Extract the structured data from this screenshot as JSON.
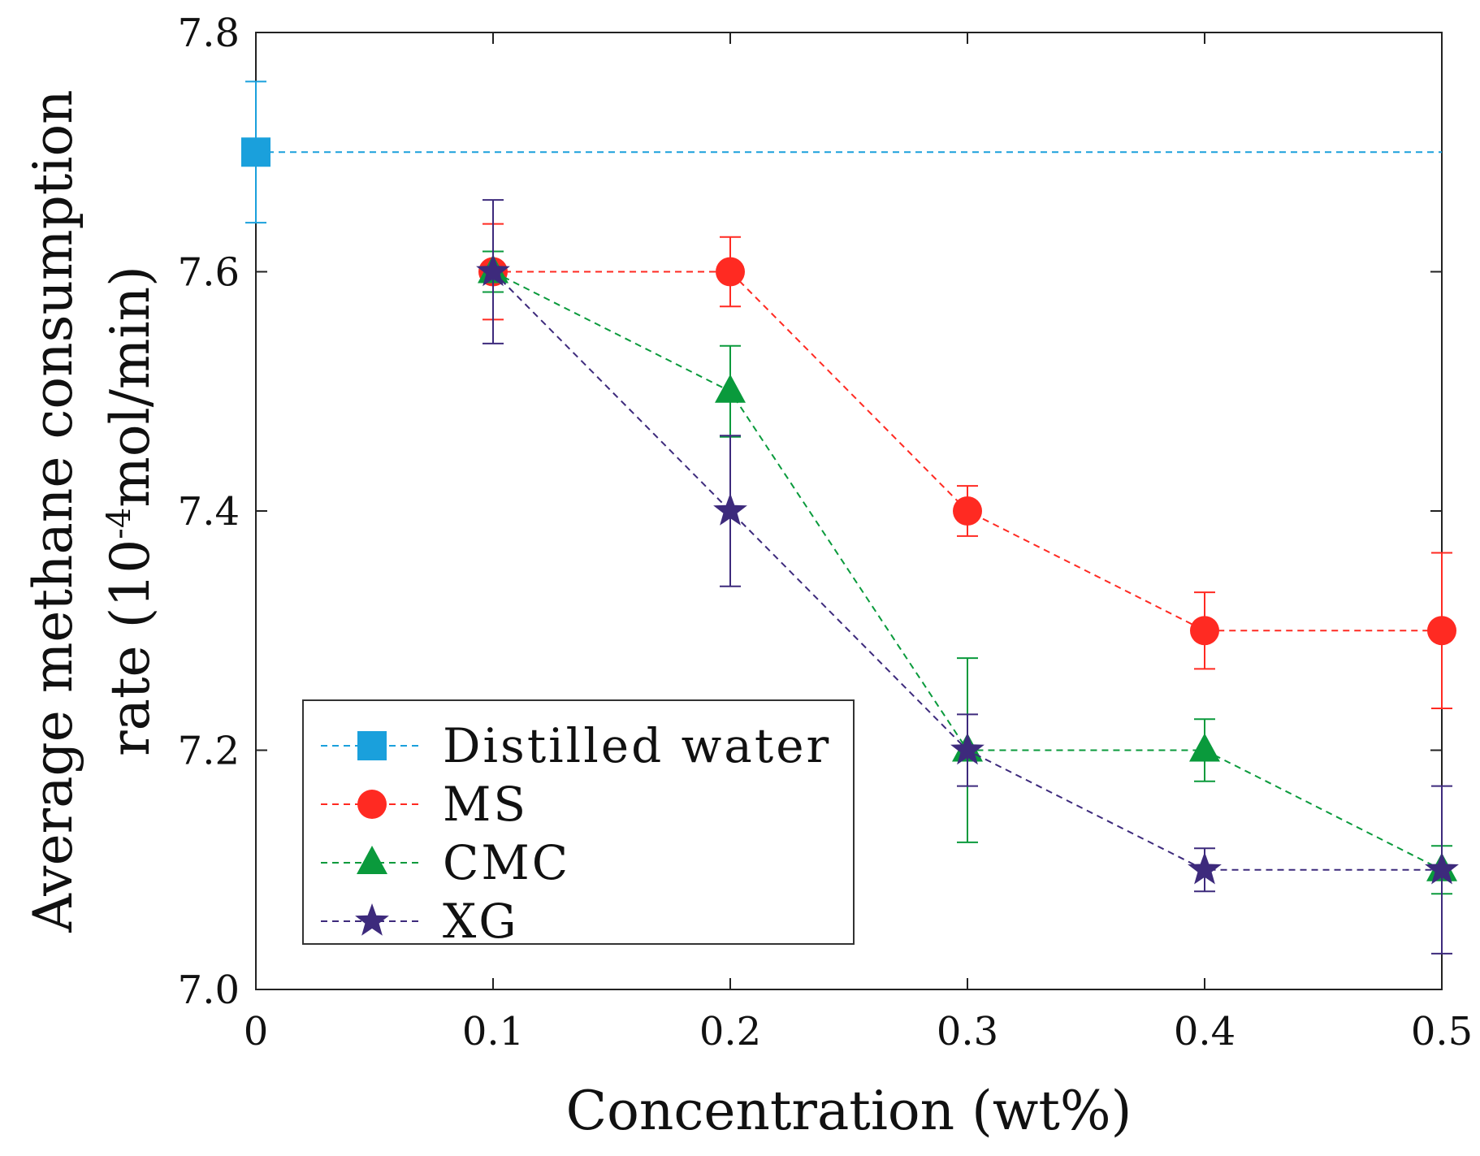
{
  "chart_data": {
    "type": "line",
    "title": "",
    "xlabel": "Concentration (wt%)",
    "ylabel_line1": "Average methane consumption",
    "ylabel_line2_prefix": "rate (10",
    "ylabel_line2_sup": "-4",
    "ylabel_line2_suffix": "mol/min)",
    "xlim": [
      0,
      0.5
    ],
    "ylim": [
      7.0,
      7.8
    ],
    "xticks": [
      0,
      0.1,
      0.2,
      0.3,
      0.4,
      0.5
    ],
    "xtick_labels": [
      "0",
      "0.1",
      "0.2",
      "0.3",
      "0.4",
      "0.5"
    ],
    "yticks": [
      7.0,
      7.2,
      7.4,
      7.6,
      7.8
    ],
    "ytick_labels": [
      "7.0",
      "7.2",
      "7.4",
      "7.6",
      "7.8"
    ],
    "legend_position": "lower-left",
    "series": [
      {
        "name": "Distilled  water",
        "marker": "square",
        "color": "#1aa0dc",
        "x": [
          0
        ],
        "y": [
          7.7
        ],
        "err": [
          0.059
        ],
        "hline": true
      },
      {
        "name": "MS",
        "marker": "circle",
        "color": "#ff2a22",
        "x": [
          0.1,
          0.2,
          0.3,
          0.4,
          0.5
        ],
        "y": [
          7.6,
          7.6,
          7.4,
          7.3,
          7.3
        ],
        "err": [
          0.04,
          0.029,
          0.021,
          0.032,
          0.065
        ]
      },
      {
        "name": "CMC",
        "marker": "triangle",
        "color": "#0a9a3c",
        "x": [
          0.1,
          0.2,
          0.3,
          0.4,
          0.5
        ],
        "y": [
          7.6,
          7.5,
          7.2,
          7.2,
          7.1
        ],
        "err": [
          0.017,
          0.038,
          0.077,
          0.026,
          0.02
        ]
      },
      {
        "name": "XG",
        "marker": "star",
        "color": "#3d2a7c",
        "x": [
          0.1,
          0.2,
          0.3,
          0.4,
          0.5
        ],
        "y": [
          7.6,
          7.4,
          7.2,
          7.1,
          7.1
        ],
        "err": [
          0.06,
          0.063,
          0.03,
          0.018,
          0.07
        ]
      }
    ]
  }
}
